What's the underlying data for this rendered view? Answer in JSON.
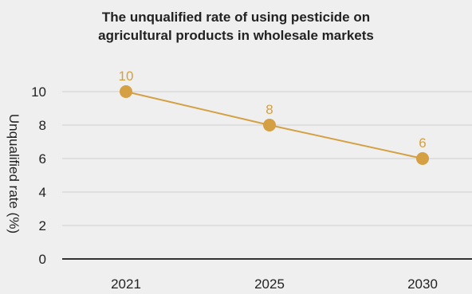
{
  "chart_data": {
    "type": "line",
    "title_lines": [
      "The unqualified rate of using pesticide on",
      "agricultural products in wholesale markets"
    ],
    "xlabel": "",
    "ylabel": "Unqualified rate (%)",
    "categories": [
      "2021",
      "2025",
      "2030"
    ],
    "series": [
      {
        "values": [
          10,
          8,
          6
        ]
      }
    ],
    "data_labels": [
      "10",
      "8",
      "6"
    ],
    "y_ticks": [
      0,
      2,
      4,
      6,
      8,
      10
    ],
    "y_tick_labels": [
      "0",
      "2",
      "4",
      "6",
      "8",
      "10"
    ],
    "ylim": [
      0,
      11
    ],
    "grid": true,
    "legend": "none",
    "colors": {
      "series": "#d4a043",
      "grid": "#cfcfcf",
      "axis": "#333333",
      "background": "#efefef"
    }
  }
}
